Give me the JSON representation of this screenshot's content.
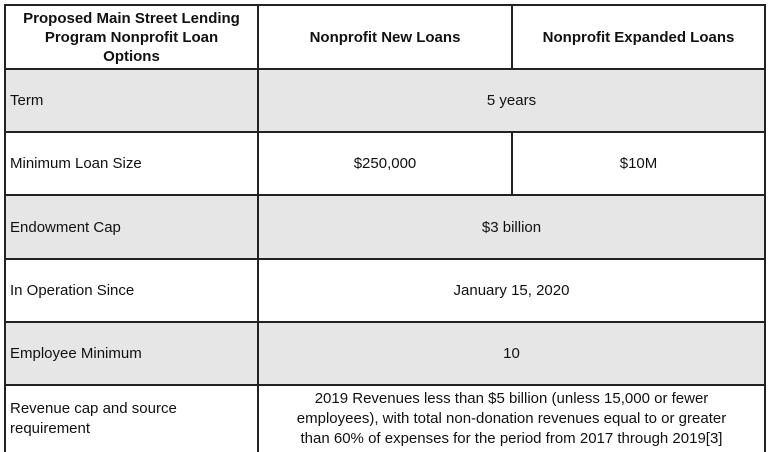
{
  "header": {
    "col1_lines": [
      "Proposed Main Street Lending",
      "Program Nonprofit Loan",
      "Options"
    ],
    "col2": "Nonprofit New Loans",
    "col3": "Nonprofit Expanded Loans"
  },
  "rows": [
    {
      "label": "Term",
      "value": "5 years"
    },
    {
      "label": "Minimum Loan Size",
      "new": "$250,000",
      "expanded": "$10M"
    },
    {
      "label": "Endowment Cap",
      "value": "$3 billion"
    },
    {
      "label": "In Operation Since",
      "value": "January 15, 2020"
    },
    {
      "label": "Employee Minimum",
      "value": "10"
    },
    {
      "label_lines": [
        "Revenue cap and source",
        "requirement"
      ],
      "value_lines": [
        "2019 Revenues less than $5 billion (unless 15,000 or fewer",
        "employees), with total non-donation revenues equal to or greater",
        "than 60% of expenses for the period from 2017 through 2019[3]"
      ]
    }
  ],
  "colors": {
    "shaded_row": "#e6e6e6",
    "border": "#222222"
  }
}
